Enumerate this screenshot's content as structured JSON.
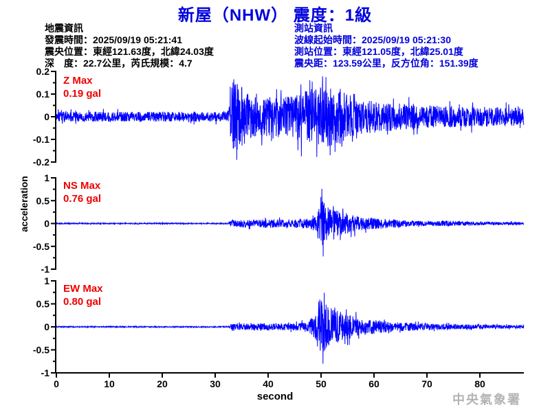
{
  "title": "新屋（NHW） 震度：1級",
  "earthquake_info": {
    "heading": "地震資訊",
    "lines": [
      "發震時間：2025/09/19 05:21:41",
      "震央位置：東經121.63度，北緯24.03度",
      "深　度：22.7公里，芮氏規模：4.7"
    ]
  },
  "station_info": {
    "heading": "測站資訊",
    "lines": [
      "波線起始時間：2025/09/19 05:21:30",
      "測站位置：東經121.05度，北緯25.01度",
      "震央距：123.59公里，反方位角：151.39度"
    ]
  },
  "footer": "中央氣象署",
  "chart_data": {
    "type": "line",
    "xlabel": "second",
    "ylabel": "acceleration",
    "x_ticks": [
      0,
      10,
      20,
      30,
      40,
      50,
      60,
      70,
      80
    ],
    "x_range": [
      0,
      88.3
    ],
    "grid": false,
    "trace_color": "#0000ff",
    "axis_color": "#000000",
    "label_color": "#ee0000",
    "traces": [
      {
        "name": "Z",
        "label": "Z Max",
        "max_label": "0.19 gal",
        "max_gal": 0.19,
        "ylim": [
          -0.2,
          0.2
        ],
        "yticks": [
          0.2,
          0.1,
          0,
          -0.1,
          -0.2
        ],
        "envelope": [
          [
            0,
            0.022
          ],
          [
            32.4,
            0.022
          ],
          [
            32.9,
            0.1
          ],
          [
            33.2,
            0.155
          ],
          [
            34.6,
            0.14
          ],
          [
            36,
            0.11
          ],
          [
            38,
            0.09
          ],
          [
            42,
            0.085
          ],
          [
            45,
            0.095
          ],
          [
            47,
            0.12
          ],
          [
            51,
            0.135
          ],
          [
            53,
            0.12
          ],
          [
            55,
            0.1
          ],
          [
            58,
            0.075
          ],
          [
            64,
            0.06
          ],
          [
            70,
            0.05
          ],
          [
            76,
            0.047
          ],
          [
            82,
            0.043
          ],
          [
            88.3,
            0.04
          ]
        ],
        "spikes": [
          [
            33.5,
            0.165
          ],
          [
            34.08,
            -0.19
          ],
          [
            48.3,
            0.155
          ],
          [
            50.9,
            0.175
          ],
          [
            51.7,
            -0.17
          ]
        ],
        "clamp": 0.178
      },
      {
        "name": "NS",
        "label": "NS Max",
        "max_label": "0.76 gal",
        "max_gal": 0.76,
        "ylim": [
          -1,
          1
        ],
        "yticks": [
          1,
          0.5,
          0,
          -0.5,
          -1
        ],
        "envelope": [
          [
            0,
            0.012
          ],
          [
            32.4,
            0.012
          ],
          [
            33,
            0.07
          ],
          [
            35,
            0.09
          ],
          [
            37,
            0.08
          ],
          [
            40,
            0.1
          ],
          [
            43,
            0.09
          ],
          [
            46,
            0.09
          ],
          [
            48,
            0.12
          ],
          [
            49,
            0.2
          ],
          [
            49.8,
            0.45
          ],
          [
            50.3,
            0.76
          ],
          [
            51,
            0.4
          ],
          [
            52,
            0.3
          ],
          [
            53.5,
            0.27
          ],
          [
            55,
            0.22
          ],
          [
            57,
            0.16
          ],
          [
            59,
            0.13
          ],
          [
            61,
            0.12
          ],
          [
            63,
            0.1
          ],
          [
            65,
            0.08
          ],
          [
            68,
            0.06
          ],
          [
            71,
            0.05
          ],
          [
            74,
            0.065
          ],
          [
            76,
            0.05
          ],
          [
            80,
            0.04
          ],
          [
            84,
            0.035
          ],
          [
            88.3,
            0.03
          ]
        ],
        "spikes": [
          [
            49.95,
            0.58
          ],
          [
            50.15,
            0.76
          ],
          [
            50.4,
            -0.72
          ],
          [
            50.6,
            0.45
          ],
          [
            52.3,
            0.38
          ],
          [
            54.1,
            0.33
          ]
        ],
        "clamp": 0.7
      },
      {
        "name": "EW",
        "label": "EW Max",
        "max_label": "0.80 gal",
        "max_gal": 0.8,
        "ylim": [
          -1,
          1
        ],
        "yticks": [
          1,
          0.5,
          0,
          -0.5,
          -1
        ],
        "envelope": [
          [
            0,
            0.012
          ],
          [
            32.4,
            0.012
          ],
          [
            33,
            0.06
          ],
          [
            36,
            0.07
          ],
          [
            39,
            0.08
          ],
          [
            42,
            0.07
          ],
          [
            45,
            0.08
          ],
          [
            47.5,
            0.1
          ],
          [
            48.8,
            0.28
          ],
          [
            49.5,
            0.5
          ],
          [
            50.2,
            0.78
          ],
          [
            51,
            0.5
          ],
          [
            52,
            0.4
          ],
          [
            53,
            0.35
          ],
          [
            54.5,
            0.3
          ],
          [
            56,
            0.24
          ],
          [
            58,
            0.18
          ],
          [
            60,
            0.15
          ],
          [
            62,
            0.13
          ],
          [
            64,
            0.1
          ],
          [
            66,
            0.09
          ],
          [
            68,
            0.08
          ],
          [
            71,
            0.07
          ],
          [
            74,
            0.06
          ],
          [
            78,
            0.05
          ],
          [
            82,
            0.042
          ],
          [
            88.3,
            0.035
          ]
        ],
        "spikes": [
          [
            49.55,
            0.55
          ],
          [
            49.85,
            -0.52
          ],
          [
            50.1,
            0.54
          ],
          [
            50.35,
            -0.8
          ],
          [
            51.0,
            -0.45
          ],
          [
            52.6,
            0.42
          ]
        ],
        "clamp": 0.74
      }
    ]
  }
}
